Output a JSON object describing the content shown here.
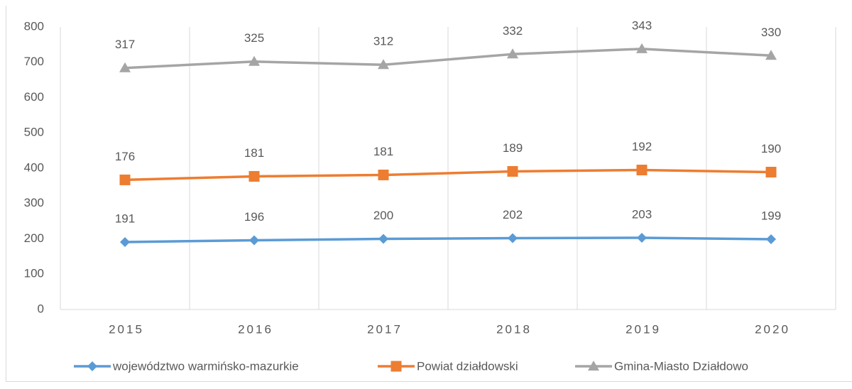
{
  "chart_data": {
    "type": "line",
    "stacked": true,
    "categories": [
      "2015",
      "2016",
      "2017",
      "2018",
      "2019",
      "2020"
    ],
    "series": [
      {
        "name": "województwo warmińsko-mazurkie",
        "color": "#5b9bd5",
        "marker": "diamond",
        "values": [
          191,
          196,
          200,
          202,
          203,
          199
        ]
      },
      {
        "name": "Powiat działdowski",
        "color": "#ed7d31",
        "marker": "square",
        "values": [
          176,
          181,
          181,
          189,
          192,
          190
        ]
      },
      {
        "name": "Gmina-Miasto Działdowo",
        "color": "#a5a5a5",
        "marker": "triangle",
        "values": [
          317,
          325,
          312,
          332,
          343,
          330
        ]
      }
    ],
    "ylim": [
      0,
      800
    ],
    "yticks": [
      0,
      100,
      200,
      300,
      400,
      500,
      600,
      700,
      800
    ],
    "grid": "x",
    "legend": "bottom",
    "data_labels": true
  }
}
